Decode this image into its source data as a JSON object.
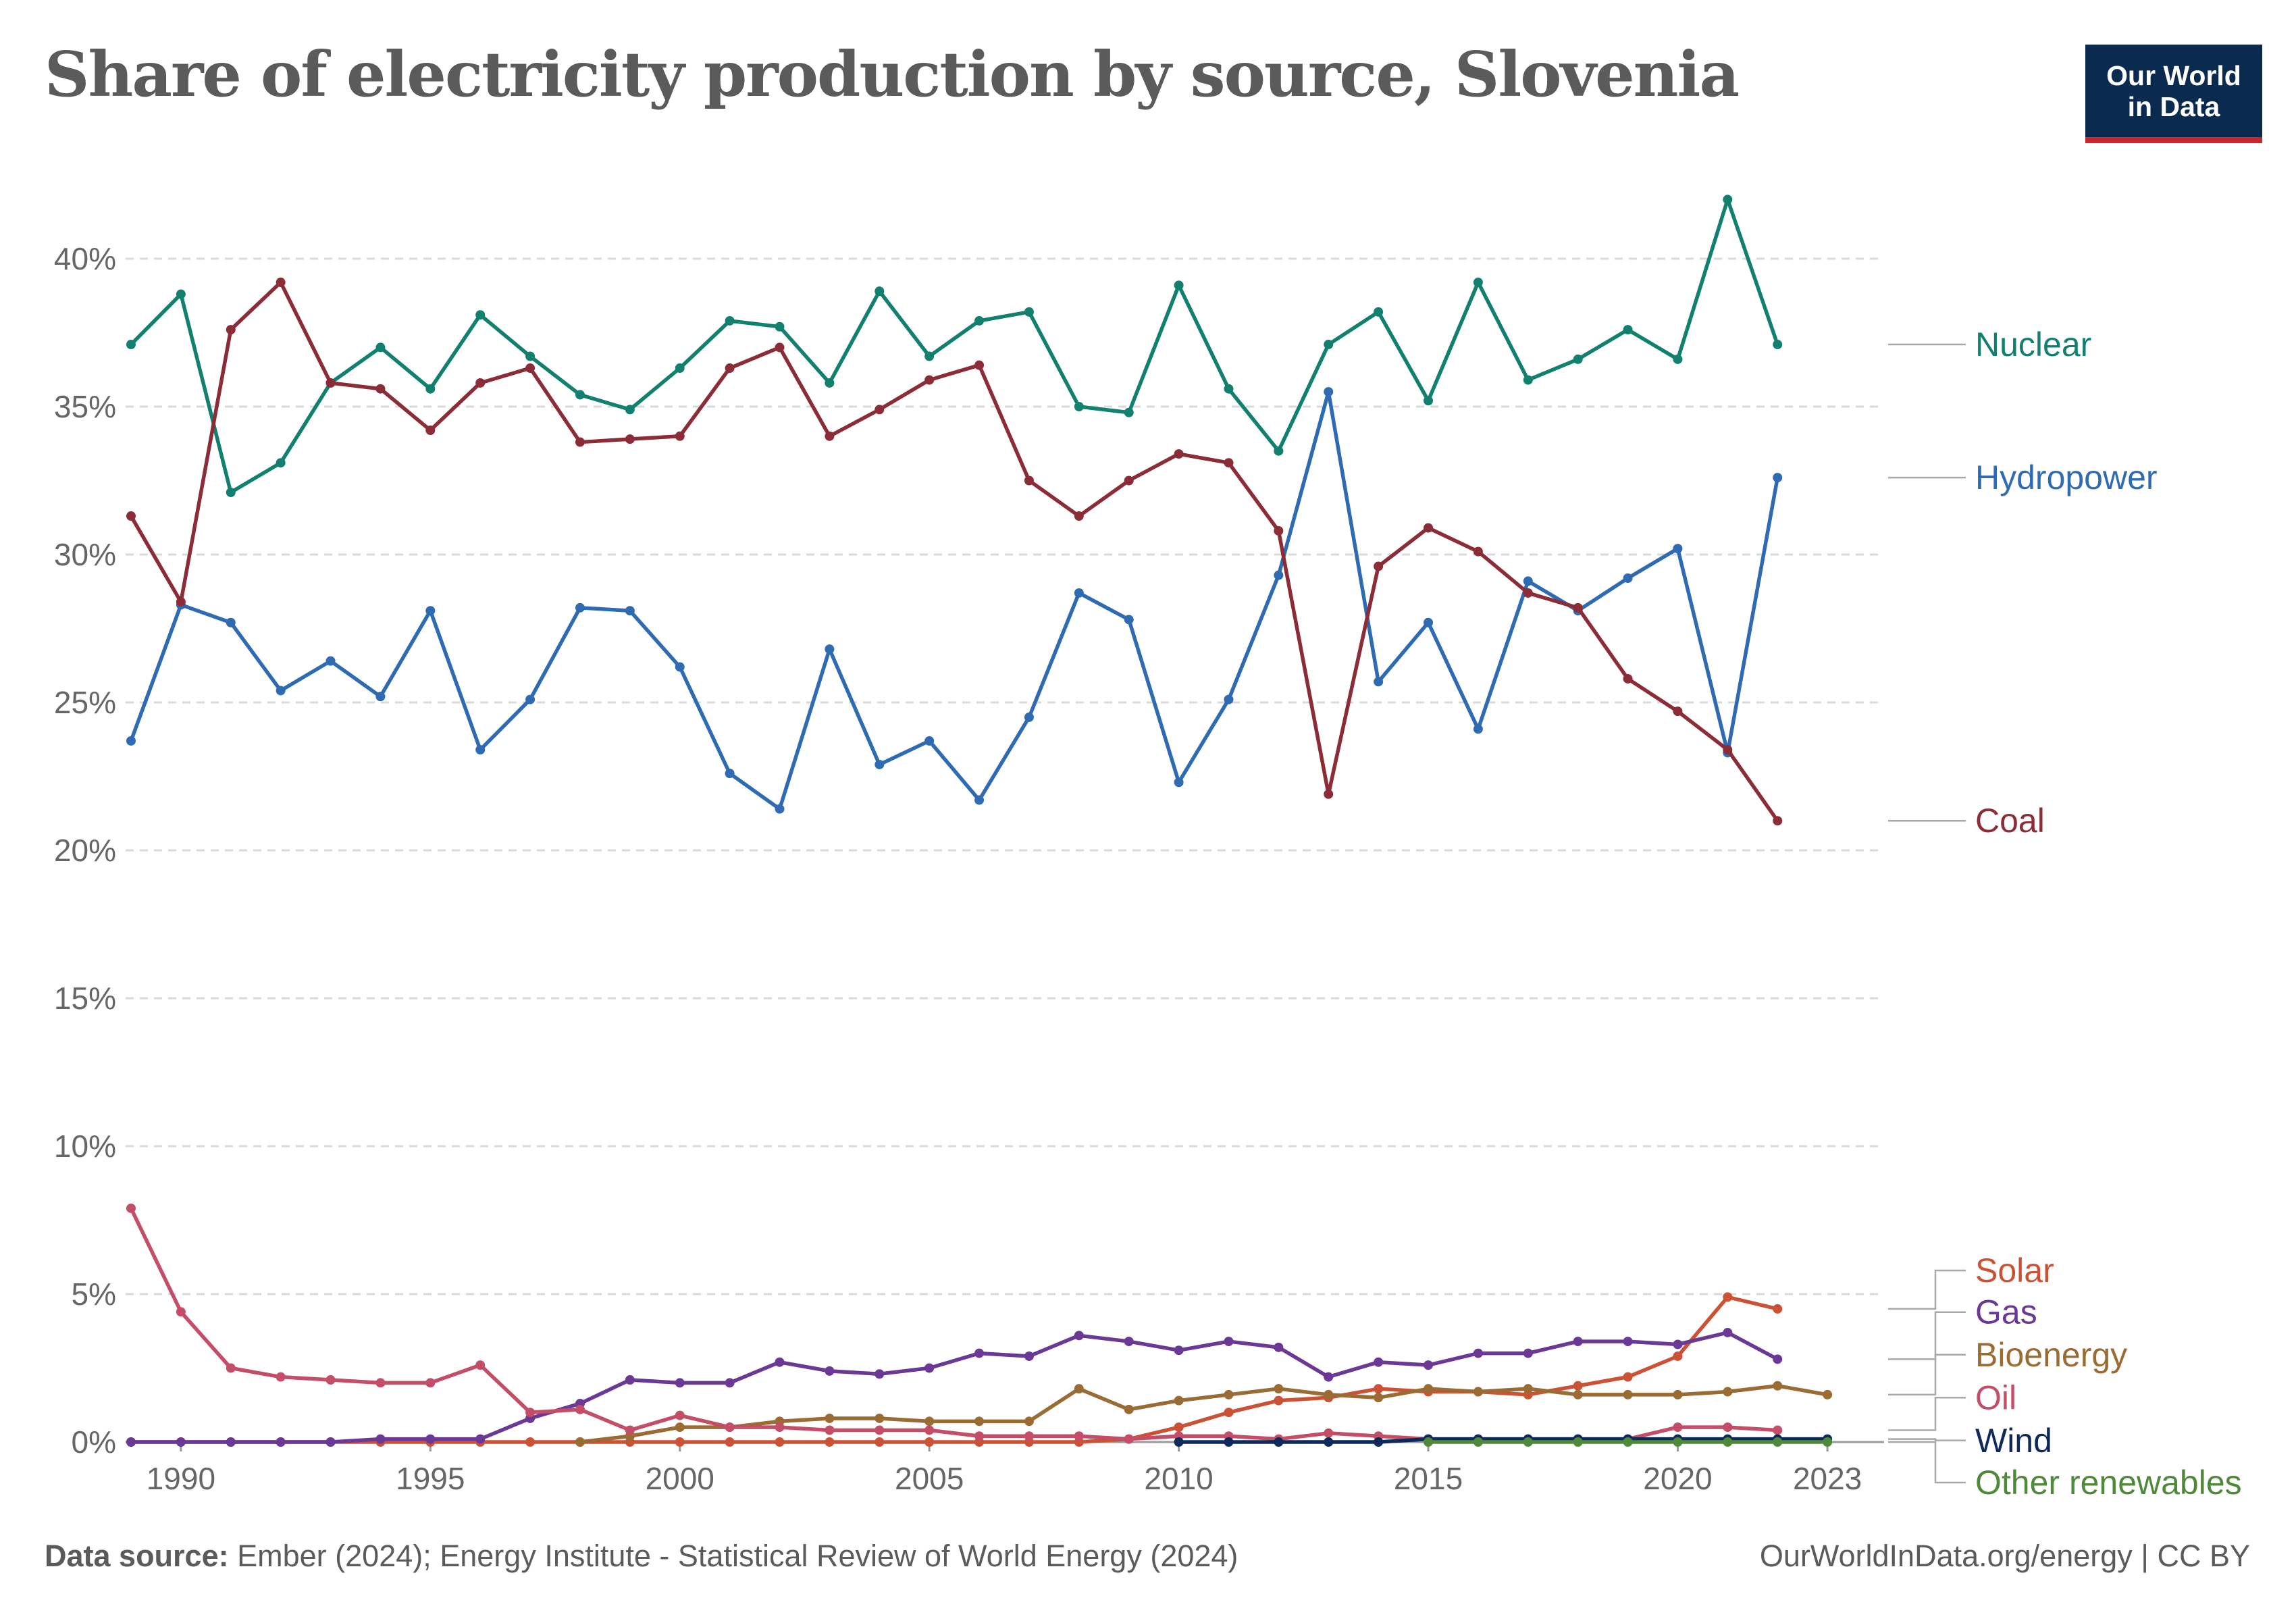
{
  "title": "Share of electricity production by source, Slovenia",
  "logo": {
    "line1": "Our World",
    "line2": "in Data"
  },
  "footer": {
    "source_label": "Data source:",
    "source_text": "Ember (2024); Energy Institute - Statistical Review of World Energy (2024)",
    "credit": "OurWorldInData.org/energy | CC BY"
  },
  "colors": {
    "grid": "#d9d9d9",
    "axis": "#9a9a9a",
    "label_line": "#a8a8a8"
  },
  "chart_data": {
    "type": "line",
    "title": "Share of electricity production by source, Slovenia",
    "x_ticks": [
      1990,
      1995,
      2000,
      2005,
      2010,
      2015,
      2020,
      2023
    ],
    "y_ticks": [
      0,
      5,
      10,
      15,
      20,
      25,
      30,
      35,
      40
    ],
    "y_tick_labels": [
      "0%",
      "5%",
      "10%",
      "15%",
      "20%",
      "25%",
      "30%",
      "35%",
      "40%"
    ],
    "xlim": [
      1989,
      2024
    ],
    "ylim": [
      0,
      42
    ],
    "grid": "horizontal dashed",
    "legend": "right, labels at line ends",
    "series": [
      {
        "name": "Nuclear",
        "color": "#12806f",
        "x_start": 1989,
        "values": [
          37.1,
          38.8,
          32.1,
          33.1,
          35.8,
          37.0,
          35.6,
          38.1,
          36.7,
          35.4,
          34.9,
          36.3,
          37.9,
          37.7,
          35.8,
          38.9,
          36.7,
          37.9,
          38.2,
          35.0,
          34.8,
          39.1,
          35.6,
          33.5,
          37.1,
          38.2,
          35.2,
          39.2,
          35.9,
          36.6,
          37.6,
          36.6,
          42.0,
          37.1
        ]
      },
      {
        "name": "Hydropower",
        "color": "#2f6bb3",
        "x_start": 1989,
        "values": [
          23.7,
          28.3,
          27.7,
          25.4,
          26.4,
          25.2,
          28.1,
          23.4,
          25.1,
          28.2,
          28.1,
          26.2,
          22.6,
          21.4,
          26.8,
          22.9,
          23.7,
          21.7,
          24.5,
          28.7,
          27.8,
          22.3,
          25.1,
          29.3,
          35.5,
          25.7,
          27.7,
          24.1,
          29.1,
          28.1,
          29.2,
          30.2,
          23.3,
          32.6
        ]
      },
      {
        "name": "Coal",
        "color": "#8b2c36",
        "x_start": 1989,
        "values": [
          31.3,
          28.4,
          37.6,
          39.2,
          35.8,
          35.6,
          34.2,
          35.8,
          36.3,
          33.8,
          33.9,
          34.0,
          36.3,
          37.0,
          34.0,
          34.9,
          35.9,
          36.4,
          32.5,
          31.3,
          32.5,
          33.4,
          33.1,
          30.8,
          21.9,
          29.6,
          30.9,
          30.1,
          28.7,
          28.2,
          25.8,
          24.7,
          23.4,
          21.0
        ]
      },
      {
        "name": "Solar",
        "color": "#cc5236",
        "x_start": 1989,
        "values": [
          0,
          0,
          0,
          0,
          0,
          0,
          0,
          0,
          0,
          0,
          0,
          0,
          0,
          0,
          0,
          0,
          0,
          0,
          0,
          0,
          0.1,
          0.5,
          1.0,
          1.4,
          1.5,
          1.8,
          1.7,
          1.7,
          1.6,
          1.9,
          2.2,
          2.9,
          4.9,
          4.5
        ]
      },
      {
        "name": "Gas",
        "color": "#6b3895",
        "x_start": 1989,
        "values": [
          0,
          0,
          0,
          0,
          0,
          0.1,
          0.1,
          0.1,
          0.8,
          1.3,
          2.1,
          2.0,
          2.0,
          2.7,
          2.4,
          2.3,
          2.5,
          3.0,
          2.9,
          3.6,
          3.4,
          3.1,
          3.4,
          3.2,
          2.2,
          2.7,
          2.6,
          3.0,
          3.0,
          3.4,
          3.4,
          3.3,
          3.7,
          2.8
        ]
      },
      {
        "name": "Bioenergy",
        "color": "#9a6b32",
        "x_start": 1998,
        "values": [
          0,
          0.2,
          0.5,
          0.5,
          0.7,
          0.8,
          0.8,
          0.7,
          0.7,
          0.7,
          1.8,
          1.1,
          1.4,
          1.6,
          1.8,
          1.6,
          1.5,
          1.8,
          1.7,
          1.8,
          1.6,
          1.6,
          1.6,
          1.7,
          1.9,
          1.6
        ]
      },
      {
        "name": "Oil",
        "color": "#c44d67",
        "x_start": 1989,
        "values": [
          7.9,
          4.4,
          2.5,
          2.2,
          2.1,
          2.0,
          2.0,
          2.6,
          1.0,
          1.1,
          0.4,
          0.9,
          0.5,
          0.5,
          0.4,
          0.4,
          0.4,
          0.2,
          0.2,
          0.2,
          0.1,
          0.2,
          0.2,
          0.1,
          0.3,
          0.2,
          0.1,
          0.1,
          0.1,
          0.1,
          0.1,
          0.5,
          0.5,
          0.4
        ]
      },
      {
        "name": "Wind",
        "color": "#0d2a5a",
        "x_start": 2010,
        "values": [
          0,
          0,
          0,
          0,
          0,
          0.1,
          0.1,
          0.1,
          0.1,
          0.1,
          0.1,
          0.1,
          0.1,
          0.1
        ]
      },
      {
        "name": "Other renewables",
        "color": "#4f8a3b",
        "x_start": 2015,
        "values": [
          0,
          0,
          0,
          0,
          0,
          0,
          0,
          0,
          0
        ]
      }
    ]
  }
}
